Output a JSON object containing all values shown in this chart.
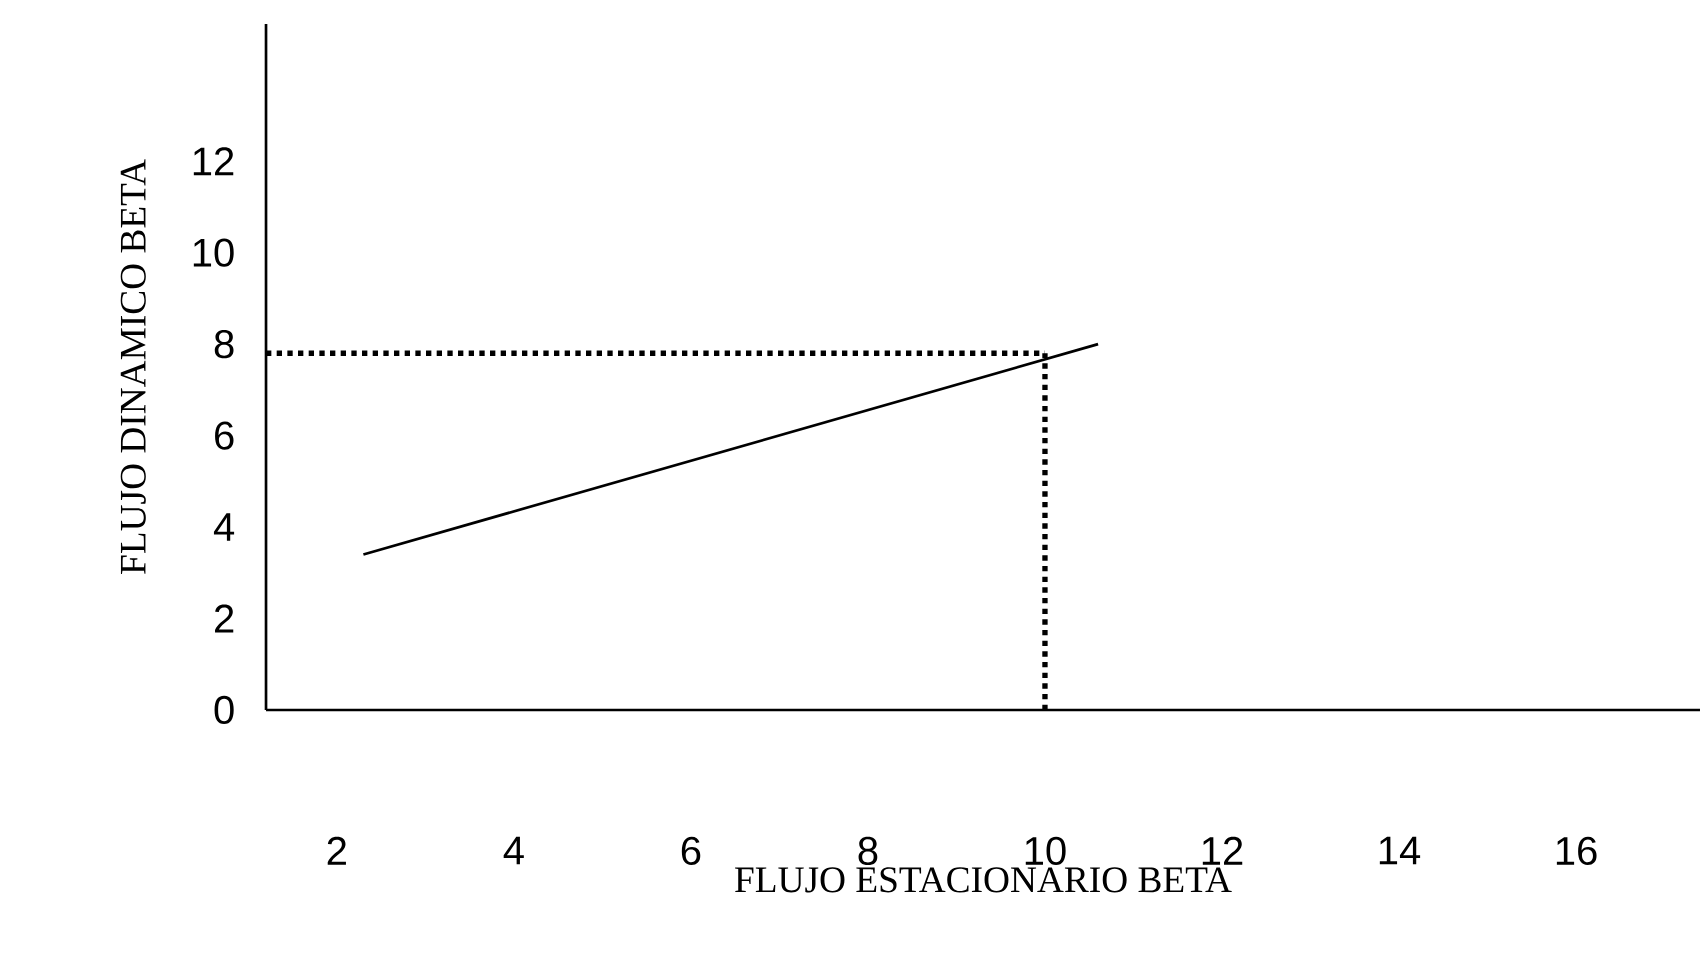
{
  "chart_data": {
    "type": "line",
    "xlabel": "FLUJO ESTACIONARIO BETA",
    "ylabel": "FLUJO DINAMICO BETA",
    "series": [
      {
        "color": "#000000",
        "x": [
          2.3,
          10.6
        ],
        "values": [
          3.4,
          8.0
        ]
      }
    ],
    "xlim": [
      1.2,
      17.4
    ],
    "ylim": [
      0,
      15
    ],
    "xticks": [
      2,
      4,
      6,
      8,
      10,
      12,
      14,
      16
    ],
    "yticks": [
      0,
      2,
      4,
      6,
      8,
      10,
      12
    ],
    "ref_lines": [
      {
        "axis": "x",
        "value": 10,
        "line_style": "dotted",
        "color": "#000000"
      },
      {
        "axis": "y",
        "value": 7.8,
        "line_style": "dotted",
        "color": "#000000"
      }
    ],
    "grid": false,
    "marker": "none",
    "line_style": "solid"
  }
}
